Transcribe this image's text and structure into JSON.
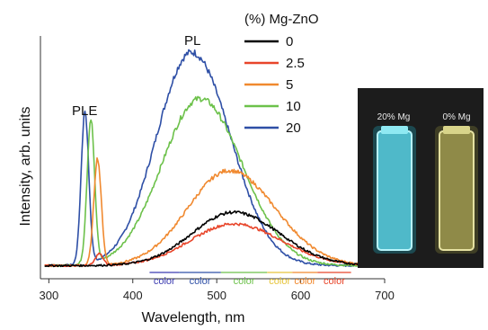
{
  "chart_data": {
    "type": "line",
    "title": "",
    "xlabel": "Wavelength, nm",
    "ylabel": "Intensity, arb. units",
    "xlim": [
      290,
      700
    ],
    "ylim": [
      0,
      1
    ],
    "x_ticks": [
      "300",
      "400",
      "500",
      "600",
      "700"
    ],
    "grid": false,
    "legend": {
      "title": "(%) Mg-ZnO",
      "placement": "top-center",
      "entries": [
        {
          "label": "0",
          "color": "#000000"
        },
        {
          "label": "2.5",
          "color": "#e8452a"
        },
        {
          "label": "5",
          "color": "#f0892f"
        },
        {
          "label": "10",
          "color": "#6cc14a"
        },
        {
          "label": "20",
          "color": "#2e4fa6"
        }
      ]
    },
    "annotations": {
      "ple": "PLE",
      "pl": "PL"
    },
    "series": [
      {
        "name": "0",
        "color": "#000000",
        "pl_peak_nm": 520,
        "pl_peak": 0.23,
        "pl_width": 52,
        "ple_peak_nm": null,
        "ple_peak": 0
      },
      {
        "name": "2.5",
        "color": "#e8452a",
        "pl_peak_nm": 520,
        "pl_peak": 0.18,
        "pl_width": 54,
        "ple_peak_nm": 360,
        "ple_peak": 0.05
      },
      {
        "name": "5",
        "color": "#f0892f",
        "pl_peak_nm": 515,
        "pl_peak": 0.41,
        "pl_width": 52,
        "ple_peak_nm": 358,
        "ple_peak": 0.46
      },
      {
        "name": "10",
        "color": "#6cc14a",
        "pl_peak_nm": 480,
        "pl_peak": 0.72,
        "pl_width": 48,
        "ple_peak_nm": 350,
        "ple_peak": 0.62
      },
      {
        "name": "20",
        "color": "#2e4fa6",
        "pl_peak_nm": 470,
        "pl_peak": 0.92,
        "pl_width": 44,
        "ple_peak_nm": 343,
        "ple_peak": 0.66
      }
    ],
    "color_bands": [
      {
        "label": "color",
        "from": 420,
        "to": 455,
        "color": "#3b3bb0"
      },
      {
        "label": "color",
        "from": 455,
        "to": 505,
        "color": "#2e4fa6"
      },
      {
        "label": "color",
        "from": 505,
        "to": 560,
        "color": "#6cc14a"
      },
      {
        "label": "color",
        "from": 560,
        "to": 590,
        "color": "#e6c43a"
      },
      {
        "label": "color",
        "from": 590,
        "to": 620,
        "color": "#f0892f"
      },
      {
        "label": "color",
        "from": 620,
        "to": 660,
        "color": "#e8452a"
      }
    ]
  },
  "photo": {
    "labels": [
      "20% Mg",
      "0% Mg"
    ],
    "vial_colors": [
      "#7fe6f0",
      "#d8d48a"
    ],
    "background": "#1c1c1c"
  }
}
